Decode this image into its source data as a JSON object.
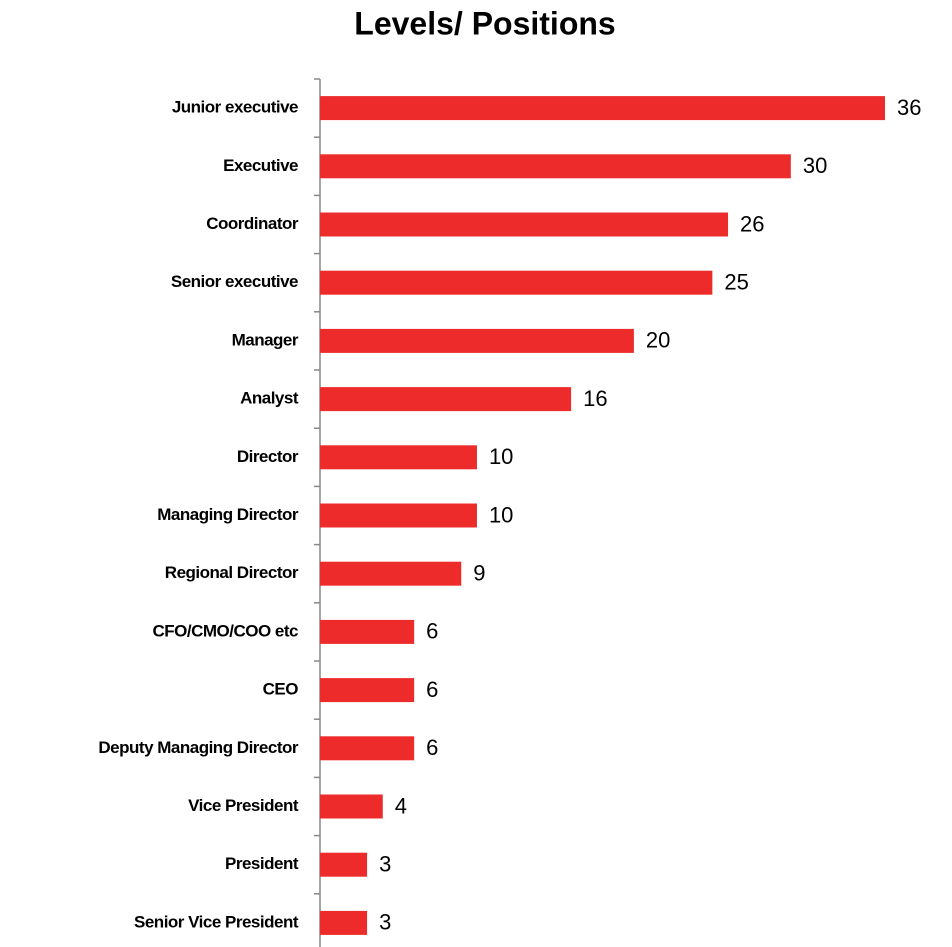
{
  "chart_data": {
    "type": "bar",
    "orientation": "horizontal",
    "title": "Levels/ Positions",
    "categories": [
      "Junior executive",
      "Executive",
      "Coordinator",
      "Senior executive",
      "Manager",
      "Analyst",
      "Director",
      "Managing Director",
      "Regional Director",
      "CFO/CMO/COO etc",
      "CEO",
      "Deputy Managing Director",
      "Vice President",
      "President",
      "Senior Vice President"
    ],
    "values": [
      36,
      30,
      26,
      25,
      20,
      16,
      10,
      10,
      9,
      6,
      6,
      6,
      4,
      3,
      3
    ],
    "color": "#ee2b2b"
  }
}
